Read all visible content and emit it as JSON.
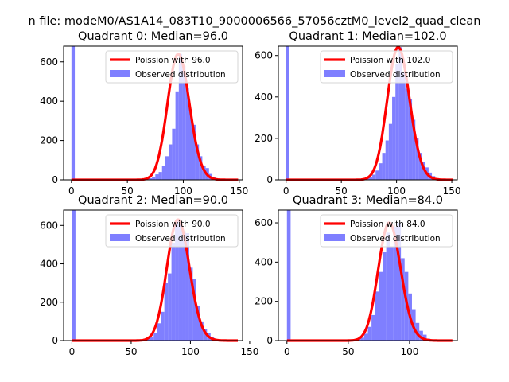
{
  "figure": {
    "suptitle": "n file: modeM0/AS1A14_083T10_9000006566_57056cztM0_level2_quad_clean"
  },
  "colors": {
    "hist": "#7f7fff",
    "model": "#ff0000",
    "axis": "#000000"
  },
  "chart_data": [
    {
      "type": "bar",
      "title": "Quadrant 0: Median=96.0",
      "median": 96.0,
      "legend": [
        "Poission with 96.0",
        "Observed distribution"
      ],
      "legend_loc": "upper-right",
      "xlim": [
        -7,
        153
      ],
      "ylim": [
        0,
        680
      ],
      "xticks": [
        0,
        50,
        100,
        150
      ],
      "yticks": [
        0,
        200,
        400,
        600
      ],
      "bin_width": 3,
      "hist_x": [
        0,
        60,
        63,
        66,
        69,
        72,
        75,
        78,
        81,
        84,
        87,
        90,
        93,
        96,
        99,
        102,
        105,
        108,
        111,
        114,
        117,
        120,
        123,
        126,
        129
      ],
      "hist_y": [
        680,
        3,
        4,
        5,
        8,
        15,
        28,
        40,
        70,
        120,
        180,
        260,
        450,
        640,
        580,
        470,
        360,
        280,
        180,
        120,
        70,
        60,
        30,
        15,
        6
      ]
    },
    {
      "type": "bar",
      "title": "Quadrant 1: Median=102.0",
      "median": 102.0,
      "legend": [
        "Poission with 102.0",
        "Observed distribution"
      ],
      "legend_loc": "upper-right",
      "xlim": [
        -7,
        155
      ],
      "ylim": [
        0,
        645
      ],
      "xticks": [
        0,
        50,
        100,
        150
      ],
      "yticks": [
        0,
        200,
        400,
        600
      ],
      "bin_width": 3,
      "hist_x": [
        0,
        66,
        69,
        72,
        75,
        78,
        81,
        84,
        87,
        90,
        93,
        96,
        99,
        102,
        105,
        108,
        111,
        114,
        117,
        120,
        123,
        126,
        129,
        132,
        135
      ],
      "hist_y": [
        645,
        3,
        5,
        8,
        15,
        25,
        45,
        80,
        130,
        190,
        270,
        400,
        560,
        640,
        520,
        440,
        390,
        290,
        200,
        130,
        85,
        60,
        35,
        18,
        8
      ]
    },
    {
      "type": "bar",
      "title": "Quadrant 2: Median=90.0",
      "median": 90.0,
      "legend": [
        "Poission with 90.0",
        "Observed distribution"
      ],
      "legend_loc": "upper-right",
      "xlim": [
        -7,
        144
      ],
      "ylim": [
        0,
        680
      ],
      "xticks": [
        0,
        50,
        100,
        150
      ],
      "yticks": [
        0,
        200,
        400,
        600
      ],
      "bin_width": 3,
      "hist_x": [
        0,
        57,
        60,
        63,
        66,
        69,
        72,
        75,
        78,
        81,
        84,
        87,
        90,
        93,
        96,
        99,
        102,
        105,
        108,
        111,
        114,
        117,
        120
      ],
      "hist_y": [
        680,
        3,
        5,
        10,
        20,
        40,
        90,
        150,
        300,
        350,
        510,
        630,
        610,
        570,
        560,
        380,
        320,
        180,
        100,
        60,
        40,
        20,
        8
      ]
    },
    {
      "type": "bar",
      "title": "Quadrant 3: Median=84.0",
      "median": 84.0,
      "legend": [
        "Poission with 84.0",
        "Observed distribution"
      ],
      "legend_loc": "upper-right",
      "xlim": [
        -7,
        139
      ],
      "ylim": [
        0,
        665
      ],
      "xticks": [
        0,
        50,
        100
      ],
      "yticks": [
        0,
        200,
        400,
        600
      ],
      "bin_width": 3,
      "hist_x": [
        0,
        21,
        51,
        54,
        57,
        60,
        63,
        66,
        69,
        72,
        75,
        78,
        81,
        84,
        87,
        90,
        93,
        96,
        99,
        102,
        105,
        108,
        111,
        114
      ],
      "hist_y": [
        665,
        4,
        3,
        5,
        8,
        15,
        35,
        70,
        130,
        250,
        350,
        450,
        550,
        480,
        580,
        600,
        420,
        350,
        240,
        160,
        90,
        50,
        30,
        10
      ]
    }
  ]
}
